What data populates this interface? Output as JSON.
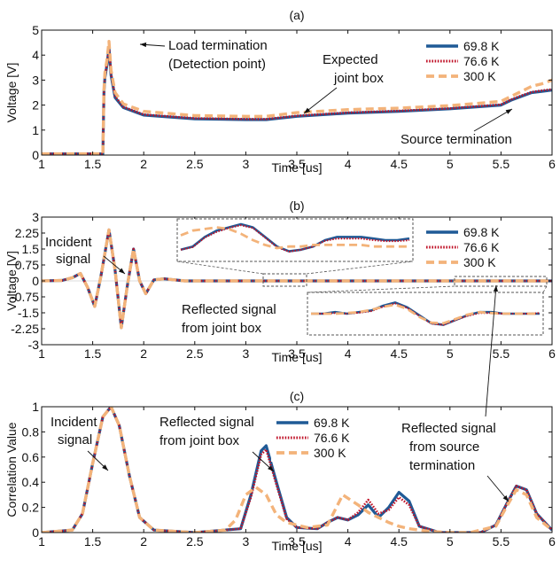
{
  "colors": {
    "s698": "#1f5a96",
    "s766": "#c0142a",
    "s300": "#f3b37a",
    "axis": "#111111",
    "zoom": "#555555"
  },
  "chart_data": [
    {
      "type": "line",
      "panel_label": "(a)",
      "xlabel": "Time [us]",
      "ylabel": "Voltage [V]",
      "xlim": [
        1,
        6
      ],
      "ylim": [
        0,
        5
      ],
      "xticks": [
        "1",
        "1.5",
        "2",
        "2.5",
        "3",
        "3.5",
        "4",
        "4.5",
        "5",
        "5.5",
        "6"
      ],
      "yticks": [
        "0",
        "1",
        "2",
        "3",
        "4",
        "5"
      ],
      "grid": false,
      "legend_position": "top-right",
      "annotations": [
        "Load termination",
        "(Detection point)",
        "Expected",
        "joint box",
        "Source termination"
      ],
      "series": [
        {
          "name": "69.8 K",
          "x": [
            1.0,
            1.55,
            1.6,
            1.61,
            1.62,
            1.64,
            1.66,
            1.68,
            1.72,
            1.8,
            2.0,
            2.5,
            3.0,
            3.2,
            3.5,
            4.0,
            4.5,
            5.0,
            5.5,
            5.6,
            5.7,
            5.8,
            5.9,
            6.0
          ],
          "y": [
            0.05,
            0.05,
            0.05,
            2.5,
            3.1,
            3.6,
            4.3,
            3.2,
            2.3,
            1.9,
            1.6,
            1.45,
            1.42,
            1.42,
            1.55,
            1.68,
            1.75,
            1.85,
            2.0,
            2.2,
            2.35,
            2.5,
            2.55,
            2.6
          ]
        },
        {
          "name": "76.6 K",
          "x": [
            1.0,
            1.55,
            1.6,
            1.61,
            1.62,
            1.64,
            1.66,
            1.68,
            1.72,
            1.8,
            2.0,
            2.5,
            3.0,
            3.2,
            3.5,
            4.0,
            4.5,
            5.0,
            5.5,
            5.6,
            5.7,
            5.8,
            5.9,
            6.0
          ],
          "y": [
            0.05,
            0.05,
            0.05,
            2.5,
            3.15,
            3.65,
            4.35,
            3.25,
            2.35,
            1.93,
            1.62,
            1.47,
            1.44,
            1.44,
            1.57,
            1.7,
            1.77,
            1.87,
            2.02,
            2.22,
            2.38,
            2.52,
            2.58,
            2.63
          ]
        },
        {
          "name": "300 K",
          "x": [
            1.0,
            1.55,
            1.6,
            1.61,
            1.62,
            1.64,
            1.66,
            1.68,
            1.72,
            1.8,
            2.0,
            2.5,
            3.0,
            3.2,
            3.5,
            4.0,
            4.5,
            5.0,
            5.5,
            5.6,
            5.7,
            5.8,
            5.9,
            6.0
          ],
          "y": [
            0.05,
            0.05,
            0.05,
            2.6,
            3.3,
            3.8,
            4.55,
            3.4,
            2.5,
            2.05,
            1.75,
            1.58,
            1.55,
            1.55,
            1.7,
            1.82,
            1.88,
            1.98,
            2.15,
            2.35,
            2.55,
            2.75,
            2.85,
            3.0
          ]
        }
      ]
    },
    {
      "type": "line",
      "panel_label": "(b)",
      "xlabel": "Time [us]",
      "ylabel": "Voltage [V]",
      "xlim": [
        1,
        6
      ],
      "ylim": [
        -3,
        3
      ],
      "xticks": [
        "1",
        "1.5",
        "2",
        "2.5",
        "3",
        "3.5",
        "4",
        "4.5",
        "5",
        "5.5",
        "6"
      ],
      "yticks": [
        "3",
        "2.25",
        "1.5",
        "0.75",
        "0",
        "-0.75",
        "-1.5",
        "-2.25",
        "-3"
      ],
      "grid": false,
      "legend_position": "top-right",
      "annotations": [
        "Incident",
        "signal",
        "Reflected signal",
        "from joint box"
      ],
      "series": [
        {
          "name": "69.8 K",
          "x": [
            1.0,
            1.2,
            1.3,
            1.38,
            1.45,
            1.52,
            1.58,
            1.66,
            1.72,
            1.78,
            1.84,
            1.9,
            1.96,
            2.02,
            2.1,
            2.2,
            2.4,
            6.0
          ],
          "y": [
            0,
            0.02,
            0.15,
            0.35,
            -0.3,
            -1.2,
            0.2,
            2.4,
            0.5,
            -2.2,
            -0.2,
            1.5,
            0.0,
            -0.6,
            0.05,
            0.1,
            0.0,
            0.0
          ]
        },
        {
          "name": "76.6 K",
          "x": [
            1.0,
            1.2,
            1.3,
            1.38,
            1.45,
            1.52,
            1.58,
            1.66,
            1.72,
            1.78,
            1.84,
            1.9,
            1.96,
            2.02,
            2.1,
            2.2,
            2.4,
            6.0
          ],
          "y": [
            0,
            0.02,
            0.15,
            0.35,
            -0.3,
            -1.2,
            0.2,
            2.4,
            0.5,
            -2.2,
            -0.2,
            1.5,
            0.0,
            -0.6,
            0.05,
            0.1,
            0.0,
            0.0
          ]
        },
        {
          "name": "300 K",
          "x": [
            1.0,
            1.2,
            1.3,
            1.38,
            1.45,
            1.52,
            1.58,
            1.66,
            1.72,
            1.78,
            1.84,
            1.9,
            1.96,
            2.02,
            2.1,
            2.2,
            2.4,
            6.0
          ],
          "y": [
            0,
            0.02,
            0.15,
            0.35,
            -0.3,
            -1.2,
            0.2,
            2.4,
            0.5,
            -2.2,
            -0.2,
            1.5,
            0.0,
            -0.6,
            0.05,
            0.1,
            0.0,
            0.0
          ]
        }
      ],
      "insets": [
        {
          "x_range": [
            2.95,
            3.35
          ],
          "series": [
            {
              "name": "69.8 K",
              "y": [
                0.2,
                0.3,
                0.6,
                0.8,
                0.9,
                1.0,
                0.9,
                0.6,
                0.3,
                0.15,
                0.2,
                0.3,
                0.5,
                0.6,
                0.6,
                0.6,
                0.55,
                0.5,
                0.5,
                0.55
              ]
            },
            {
              "name": "76.6 K",
              "y": [
                0.2,
                0.28,
                0.58,
                0.76,
                0.88,
                0.97,
                0.88,
                0.58,
                0.28,
                0.14,
                0.2,
                0.3,
                0.48,
                0.55,
                0.55,
                0.55,
                0.5,
                0.47,
                0.47,
                0.5
              ]
            },
            {
              "name": "300 K",
              "y": [
                0.65,
                0.8,
                0.85,
                0.9,
                0.85,
                0.7,
                0.5,
                0.35,
                0.25,
                0.3,
                0.3,
                0.35,
                0.35,
                0.35,
                0.35,
                0.35,
                0.3,
                0.3,
                0.3,
                0.3
              ]
            }
          ]
        },
        {
          "x_range": [
            5.45,
            6.0
          ],
          "series": [
            {
              "name": "69.8 K",
              "y": [
                0.5,
                0.5,
                0.55,
                0.5,
                0.55,
                0.6,
                0.75,
                0.85,
                0.7,
                0.45,
                0.2,
                0.15,
                0.3,
                0.45,
                0.55,
                0.55,
                0.5,
                0.5,
                0.5,
                0.5
              ]
            },
            {
              "name": "76.6 K",
              "y": [
                0.5,
                0.5,
                0.52,
                0.5,
                0.53,
                0.58,
                0.72,
                0.82,
                0.68,
                0.43,
                0.19,
                0.15,
                0.3,
                0.43,
                0.52,
                0.52,
                0.5,
                0.5,
                0.5,
                0.52
              ]
            },
            {
              "name": "300 K",
              "y": [
                0.5,
                0.5,
                0.5,
                0.52,
                0.55,
                0.62,
                0.72,
                0.78,
                0.65,
                0.4,
                0.22,
                0.2,
                0.33,
                0.47,
                0.55,
                0.52,
                0.5,
                0.5,
                0.5,
                0.5
              ]
            }
          ]
        }
      ]
    },
    {
      "type": "line",
      "panel_label": "(c)",
      "xlabel": "Time [us]",
      "ylabel": "Correlation Value",
      "xlim": [
        1,
        6
      ],
      "ylim": [
        0,
        1
      ],
      "xticks": [
        "1",
        "1.5",
        "2",
        "2.5",
        "3",
        "3.5",
        "4",
        "4.5",
        "5",
        "5.5",
        "6"
      ],
      "yticks": [
        "0",
        "0.2",
        "0.4",
        "0.6",
        "0.8",
        "1"
      ],
      "grid": false,
      "legend_position": "top-center",
      "annotations": [
        "Incident",
        "signal",
        "Reflected signal",
        "from joint box",
        "Reflected signal",
        "from source",
        "termination"
      ],
      "series": [
        {
          "name": "69.8 K",
          "x": [
            1.0,
            1.3,
            1.4,
            1.5,
            1.6,
            1.68,
            1.76,
            1.86,
            1.96,
            2.1,
            2.5,
            2.95,
            3.05,
            3.15,
            3.2,
            3.3,
            3.4,
            3.5,
            3.7,
            3.8,
            3.9,
            4.0,
            4.1,
            4.2,
            4.3,
            4.4,
            4.5,
            4.6,
            4.7,
            4.9,
            5.3,
            5.45,
            5.55,
            5.65,
            5.75,
            5.85,
            6.0
          ],
          "y": [
            0.0,
            0.02,
            0.15,
            0.55,
            0.92,
            1.0,
            0.85,
            0.45,
            0.12,
            0.02,
            0.0,
            0.03,
            0.3,
            0.65,
            0.69,
            0.4,
            0.12,
            0.04,
            0.03,
            0.08,
            0.12,
            0.1,
            0.14,
            0.22,
            0.12,
            0.2,
            0.32,
            0.25,
            0.05,
            0.0,
            0.0,
            0.06,
            0.22,
            0.37,
            0.34,
            0.15,
            0.02
          ]
        },
        {
          "name": "76.6 K",
          "x": [
            1.0,
            1.3,
            1.4,
            1.5,
            1.6,
            1.68,
            1.76,
            1.86,
            1.96,
            2.1,
            2.5,
            2.95,
            3.05,
            3.15,
            3.2,
            3.3,
            3.4,
            3.5,
            3.7,
            3.8,
            3.9,
            4.0,
            4.1,
            4.2,
            4.3,
            4.4,
            4.5,
            4.6,
            4.7,
            4.9,
            5.3,
            5.45,
            5.55,
            5.65,
            5.75,
            5.85,
            6.0
          ],
          "y": [
            0.0,
            0.02,
            0.15,
            0.55,
            0.92,
            1.0,
            0.85,
            0.45,
            0.12,
            0.02,
            0.0,
            0.03,
            0.28,
            0.62,
            0.66,
            0.38,
            0.11,
            0.04,
            0.03,
            0.08,
            0.12,
            0.1,
            0.16,
            0.26,
            0.15,
            0.18,
            0.28,
            0.22,
            0.05,
            0.0,
            0.0,
            0.06,
            0.22,
            0.37,
            0.34,
            0.15,
            0.02
          ]
        },
        {
          "name": "300 K",
          "x": [
            1.0,
            1.3,
            1.4,
            1.5,
            1.6,
            1.68,
            1.76,
            1.86,
            1.96,
            2.1,
            2.5,
            2.8,
            2.9,
            3.0,
            3.1,
            3.2,
            3.3,
            3.4,
            3.6,
            3.8,
            3.95,
            4.1,
            4.2,
            4.3,
            4.4,
            4.5,
            4.6,
            4.8,
            5.0,
            5.2,
            5.45,
            5.55,
            5.65,
            5.75,
            5.85,
            6.0
          ],
          "y": [
            0.0,
            0.02,
            0.15,
            0.55,
            0.92,
            1.0,
            0.85,
            0.45,
            0.12,
            0.02,
            0.0,
            0.02,
            0.1,
            0.3,
            0.36,
            0.3,
            0.14,
            0.08,
            0.04,
            0.06,
            0.3,
            0.22,
            0.16,
            0.12,
            0.08,
            0.05,
            0.03,
            0.01,
            0.0,
            0.0,
            0.05,
            0.2,
            0.34,
            0.3,
            0.12,
            0.02
          ]
        }
      ]
    }
  ]
}
